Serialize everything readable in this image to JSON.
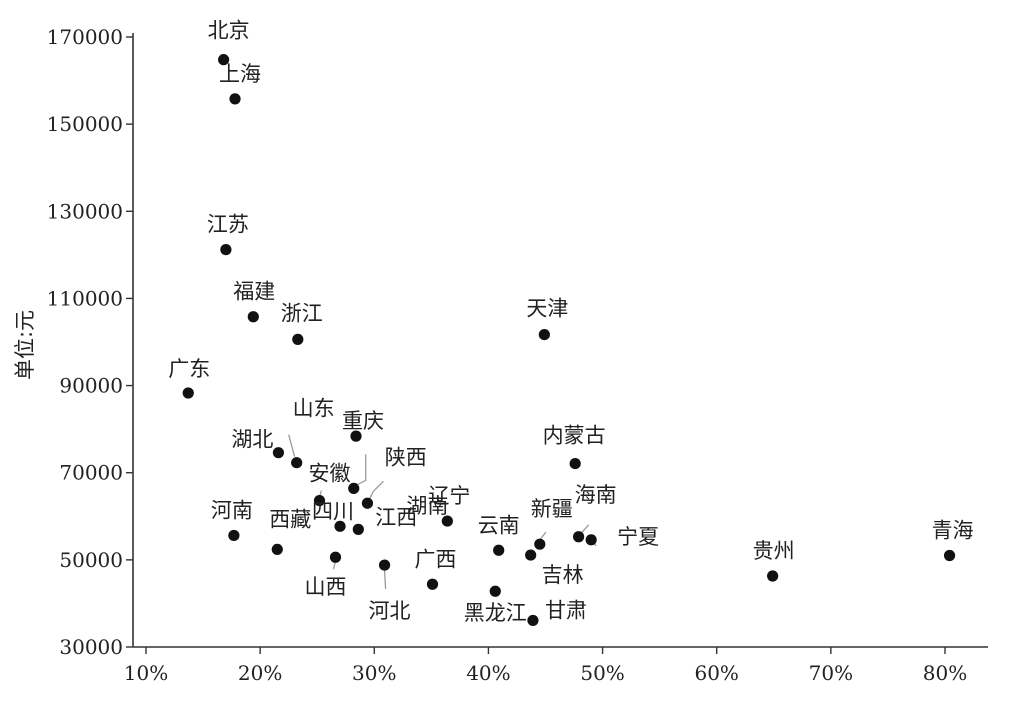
{
  "chart_data": {
    "type": "scatter",
    "title": "",
    "xlabel": "",
    "ylabel": "单位:元",
    "xlim": [
      0.1,
      0.85
    ],
    "ylim": [
      30000,
      170000
    ],
    "x_ticks": [
      0.1,
      0.2,
      0.3,
      0.4,
      0.5,
      0.6,
      0.7,
      0.8
    ],
    "x_tick_labels": [
      "10%",
      "20%",
      "30%",
      "40%",
      "50%",
      "60%",
      "70%",
      "80%"
    ],
    "y_ticks": [
      30000,
      50000,
      70000,
      90000,
      110000,
      130000,
      150000,
      170000
    ],
    "y_tick_labels": [
      "30000",
      "50000",
      "70000",
      "90000",
      "110000",
      "130000",
      "150000",
      "170000"
    ],
    "grid": false,
    "legend": "none",
    "points": [
      {
        "label": "北京",
        "x": 0.168,
        "y": 164800
      },
      {
        "label": "上海",
        "x": 0.178,
        "y": 155800
      },
      {
        "label": "江苏",
        "x": 0.17,
        "y": 121200
      },
      {
        "label": "福建",
        "x": 0.194,
        "y": 105800
      },
      {
        "label": "浙江",
        "x": 0.233,
        "y": 100600
      },
      {
        "label": "天津",
        "x": 0.449,
        "y": 101700
      },
      {
        "label": "广东",
        "x": 0.137,
        "y": 88300
      },
      {
        "label": "湖北",
        "x": 0.216,
        "y": 74600
      },
      {
        "label": "山东",
        "x": 0.232,
        "y": 72300
      },
      {
        "label": "重庆",
        "x": 0.284,
        "y": 78400
      },
      {
        "label": "安徽",
        "x": 0.252,
        "y": 63600
      },
      {
        "label": "陕西",
        "x": 0.282,
        "y": 66400
      },
      {
        "label": "湖南",
        "x": 0.294,
        "y": 63000
      },
      {
        "label": "内蒙古",
        "x": 0.476,
        "y": 72100
      },
      {
        "label": "河南",
        "x": 0.177,
        "y": 55600
      },
      {
        "label": "西藏",
        "x": 0.215,
        "y": 52400
      },
      {
        "label": "四川",
        "x": 0.27,
        "y": 57700
      },
      {
        "label": "江西",
        "x": 0.286,
        "y": 57000
      },
      {
        "label": "辽宁",
        "x": 0.364,
        "y": 58900
      },
      {
        "label": "云南",
        "x": 0.409,
        "y": 52200
      },
      {
        "label": "新疆",
        "x": 0.445,
        "y": 53600
      },
      {
        "label": "吉林",
        "x": 0.437,
        "y": 51100
      },
      {
        "label": "海南",
        "x": 0.479,
        "y": 55300
      },
      {
        "label": "宁夏",
        "x": 0.49,
        "y": 54600
      },
      {
        "label": "山西",
        "x": 0.266,
        "y": 50600
      },
      {
        "label": "河北",
        "x": 0.309,
        "y": 48800
      },
      {
        "label": "广西",
        "x": 0.351,
        "y": 44400
      },
      {
        "label": "黑龙江",
        "x": 0.406,
        "y": 42800
      },
      {
        "label": "甘肃",
        "x": 0.439,
        "y": 36100
      },
      {
        "label": "贵州",
        "x": 0.649,
        "y": 46300
      },
      {
        "label": "青海",
        "x": 0.804,
        "y": 51000
      }
    ]
  }
}
